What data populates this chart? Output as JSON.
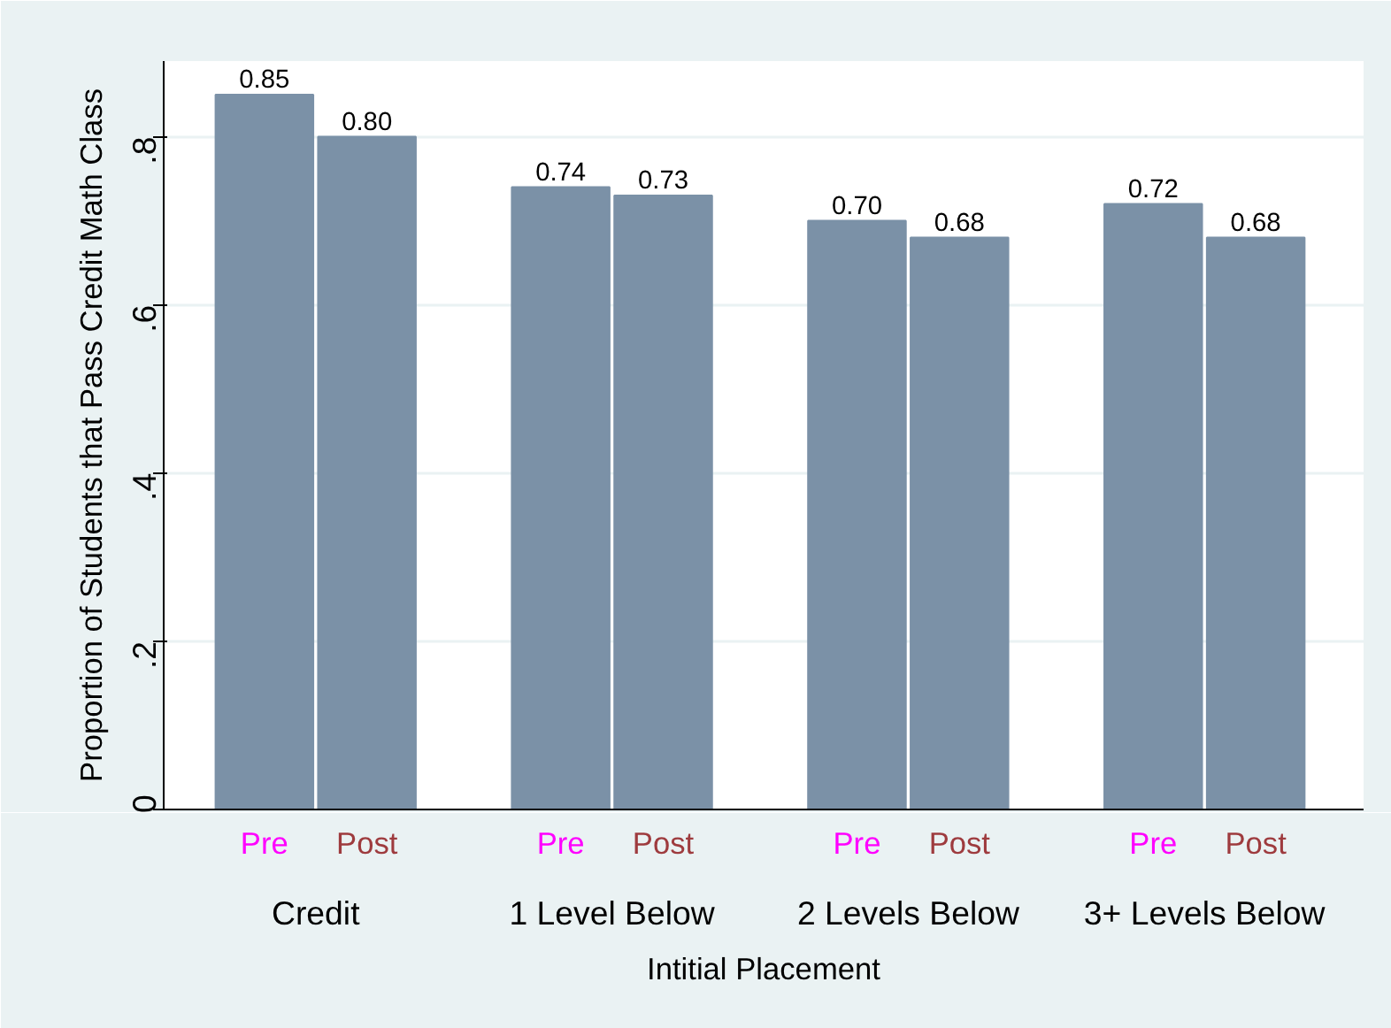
{
  "chart_data": {
    "type": "bar",
    "xlabel": "Intitial Placement",
    "ylabel": "Proportion of Students that Pass Credit Math Class",
    "categories": [
      "Credit",
      "1 Level Below",
      "2 Levels Below",
      "3+ Levels Below"
    ],
    "series": [
      {
        "name": "Pre",
        "color": "#7b91a7",
        "values": [
          0.85,
          0.74,
          0.7,
          0.72
        ],
        "value_labels": [
          "0.85",
          "0.74",
          "0.70",
          "0.72"
        ]
      },
      {
        "name": "Post",
        "color": "#7b91a7",
        "values": [
          0.8,
          0.73,
          0.68,
          0.68
        ],
        "value_labels": [
          "0.80",
          "0.73",
          "0.68",
          "0.68"
        ]
      }
    ],
    "ylim": [
      0,
      0.89
    ],
    "yticks": [
      0,
      {
        "value": 0.2,
        "label": ".2"
      },
      {
        "value": 0.4,
        "label": ".4"
      },
      {
        "value": 0.6,
        "label": ".6"
      },
      {
        "value": 0.8,
        "label": ".8"
      }
    ],
    "grid": "y"
  }
}
